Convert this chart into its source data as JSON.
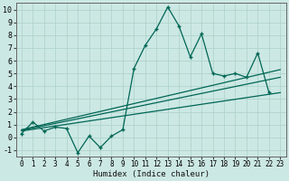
{
  "xlabel": "Humidex (Indice chaleur)",
  "bg_color": "#cce8e4",
  "grid_color": "#b0d4cc",
  "line_color": "#006655",
  "x_data": [
    0,
    1,
    2,
    3,
    4,
    5,
    6,
    7,
    8,
    9,
    10,
    11,
    12,
    13,
    14,
    15,
    16,
    17,
    18,
    19,
    20,
    21,
    22
  ],
  "y_main": [
    0.3,
    1.2,
    0.5,
    0.8,
    0.7,
    -1.2,
    0.1,
    -0.8,
    0.1,
    0.6,
    5.4,
    7.2,
    8.5,
    10.2,
    8.7,
    6.3,
    8.1,
    5.0,
    4.8,
    5.0,
    4.7,
    6.6,
    3.5
  ],
  "y_reg1_start": 0.6,
  "y_reg1_end": 5.3,
  "y_reg2_start": 0.55,
  "y_reg2_end": 4.7,
  "y_reg3_start": 0.5,
  "y_reg3_end": 3.5,
  "ylim": [
    -1.5,
    10.5
  ],
  "xlim": [
    -0.5,
    23.5
  ],
  "yticks": [
    -1,
    0,
    1,
    2,
    3,
    4,
    5,
    6,
    7,
    8,
    9,
    10
  ],
  "xticks": [
    0,
    1,
    2,
    3,
    4,
    5,
    6,
    7,
    8,
    9,
    10,
    11,
    12,
    13,
    14,
    15,
    16,
    17,
    18,
    19,
    20,
    21,
    22,
    23
  ]
}
